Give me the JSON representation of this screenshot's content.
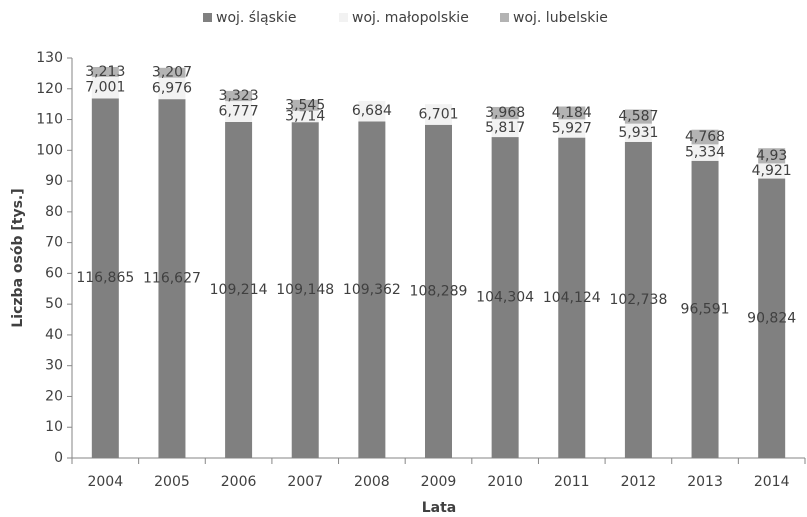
{
  "chart_data": {
    "type": "bar",
    "stacked": true,
    "x_label": "Lata",
    "y_label": "Liczba osób [tys.]",
    "categories": [
      "2004",
      "2005",
      "2006",
      "2007",
      "2008",
      "2009",
      "2010",
      "2011",
      "2012",
      "2013",
      "2014"
    ],
    "series": [
      {
        "name": "woj. śląskie",
        "color": "#808080",
        "values": [
          116.865,
          116.627,
          109.214,
          109.148,
          109.362,
          108.289,
          104.304,
          104.124,
          102.738,
          96.591,
          90.824
        ],
        "value_labels": [
          "116,865",
          "116,627",
          "109,214",
          "109,148",
          "109,362",
          "108,289",
          "104,304",
          "104,124",
          "102,738",
          "96,591",
          "90,824"
        ]
      },
      {
        "name": "woj. małopolskie",
        "color": "#f2f2f2",
        "values": [
          7.001,
          6.976,
          6.777,
          3.714,
          6.684,
          6.701,
          5.817,
          5.927,
          5.931,
          5.334,
          4.921
        ],
        "value_labels": [
          "7,001",
          "6,976",
          "6,777",
          "3,714",
          "6,684",
          "6,701",
          "5,817",
          "5,927",
          "5,931",
          "5,334",
          "4,921"
        ]
      },
      {
        "name": "woj. lubelskie",
        "color": "#b3b3b3",
        "values": [
          3.213,
          3.207,
          3.323,
          3.545,
          null,
          null,
          3.968,
          4.184,
          4.587,
          4.768,
          4.93
        ],
        "value_labels": [
          "3,213",
          "3,207",
          "3,323",
          "3,545",
          null,
          null,
          "3,968",
          "4,184",
          "4,587",
          "4,768",
          "4,93"
        ]
      }
    ],
    "ylim": [
      0,
      130
    ],
    "yticks": [
      0,
      10,
      20,
      30,
      40,
      50,
      60,
      70,
      80,
      90,
      100,
      110,
      120,
      130
    ],
    "legend": "top"
  }
}
